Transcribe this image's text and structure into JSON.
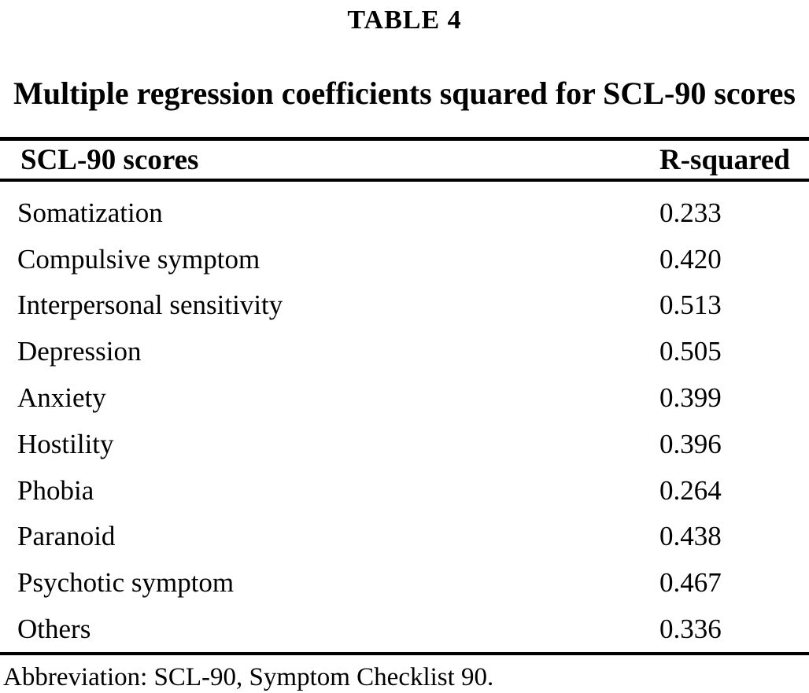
{
  "page": {
    "caption_label": "TABLE 4",
    "title": "Multiple regression coefficients squared for SCL-90 scores",
    "footnote": "Abbreviation: SCL-90, Symptom Checklist 90."
  },
  "table": {
    "headers": {
      "score": "SCL-90 scores",
      "r_squared": "R-squared"
    },
    "rows": [
      {
        "score": "Somatization",
        "r_squared": "0.233"
      },
      {
        "score": "Compulsive symptom",
        "r_squared": "0.420"
      },
      {
        "score": "Interpersonal sensitivity",
        "r_squared": "0.513"
      },
      {
        "score": "Depression",
        "r_squared": "0.505"
      },
      {
        "score": "Anxiety",
        "r_squared": "0.399"
      },
      {
        "score": "Hostility",
        "r_squared": "0.396"
      },
      {
        "score": "Phobia",
        "r_squared": "0.264"
      },
      {
        "score": "Paranoid",
        "r_squared": "0.438"
      },
      {
        "score": "Psychotic symptom",
        "r_squared": "0.467"
      },
      {
        "score": "Others",
        "r_squared": "0.336"
      }
    ]
  },
  "colors": {
    "text": "#000000",
    "background": "#ffffff",
    "rule": "#000000"
  },
  "chart_data": {
    "type": "table",
    "title": "Multiple regression coefficients squared for SCL-90 scores",
    "columns": [
      "SCL-90 scores",
      "R-squared"
    ],
    "rows": [
      [
        "Somatization",
        0.233
      ],
      [
        "Compulsive symptom",
        0.42
      ],
      [
        "Interpersonal sensitivity",
        0.513
      ],
      [
        "Depression",
        0.505
      ],
      [
        "Anxiety",
        0.399
      ],
      [
        "Hostility",
        0.396
      ],
      [
        "Phobia",
        0.264
      ],
      [
        "Paranoid",
        0.438
      ],
      [
        "Psychotic symptom",
        0.467
      ],
      [
        "Others",
        0.336
      ]
    ],
    "footnote": "Abbreviation: SCL-90, Symptom Checklist 90."
  }
}
